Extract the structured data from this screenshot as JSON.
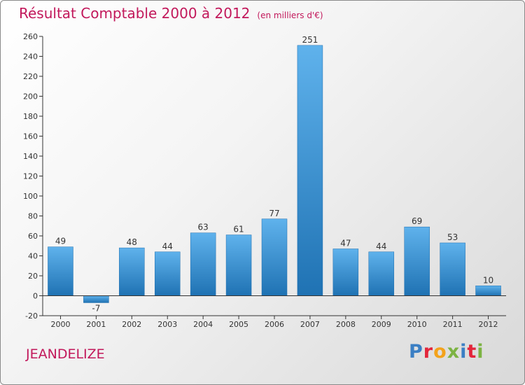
{
  "chart_data": {
    "type": "bar",
    "title": "Résultat Comptable 2000 à 2012",
    "subtitle": "(en milliers d'€)",
    "categories": [
      "2000",
      "2001",
      "2002",
      "2003",
      "2004",
      "2005",
      "2006",
      "2007",
      "2008",
      "2009",
      "2010",
      "2011",
      "2012"
    ],
    "values": [
      49,
      -7,
      48,
      44,
      63,
      61,
      77,
      251,
      47,
      44,
      69,
      53,
      10
    ],
    "ylim": [
      -20,
      260
    ],
    "yticks": [
      -20,
      0,
      20,
      40,
      60,
      80,
      100,
      120,
      140,
      160,
      180,
      200,
      220,
      240,
      260
    ],
    "xlabel": "",
    "ylabel": "",
    "grid": false,
    "bar_color": "#3a8fd6"
  },
  "commune": "JEANDELIZE",
  "logo": {
    "letters": [
      "P",
      "r",
      "o",
      "x",
      "i",
      "t",
      "i"
    ],
    "colors": [
      "#3b7fc4",
      "#e3263b",
      "#f3a21b",
      "#7cb342",
      "#3b7fc4",
      "#e3263b",
      "#7cb342"
    ]
  },
  "colors": {
    "title": "#c2185b",
    "axis": "#333333"
  }
}
